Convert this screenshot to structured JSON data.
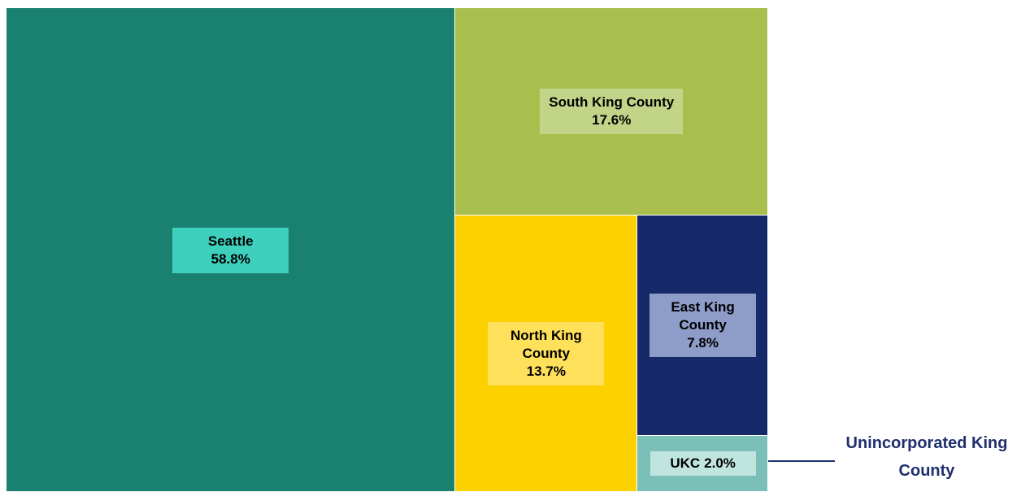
{
  "chart_data": {
    "type": "treemap",
    "categories": [
      "Seattle",
      "South King County",
      "North King County",
      "East King County",
      "UKC"
    ],
    "values": [
      58.8,
      17.6,
      13.7,
      7.8,
      2.0
    ],
    "value_labels": [
      "58.8%",
      "17.6%",
      "13.7%",
      "7.8%",
      "2.0%"
    ],
    "colors": [
      "#1a8070",
      "#a8bf4e",
      "#fdd000",
      "#162a6a",
      "#7bc0b8"
    ],
    "label_box_colors": [
      "#3ecfbd",
      "#c2d488",
      "#ffe05a",
      "#8d9cc9",
      "#c0e5df"
    ],
    "annotation": "Unincorporated King County"
  }
}
